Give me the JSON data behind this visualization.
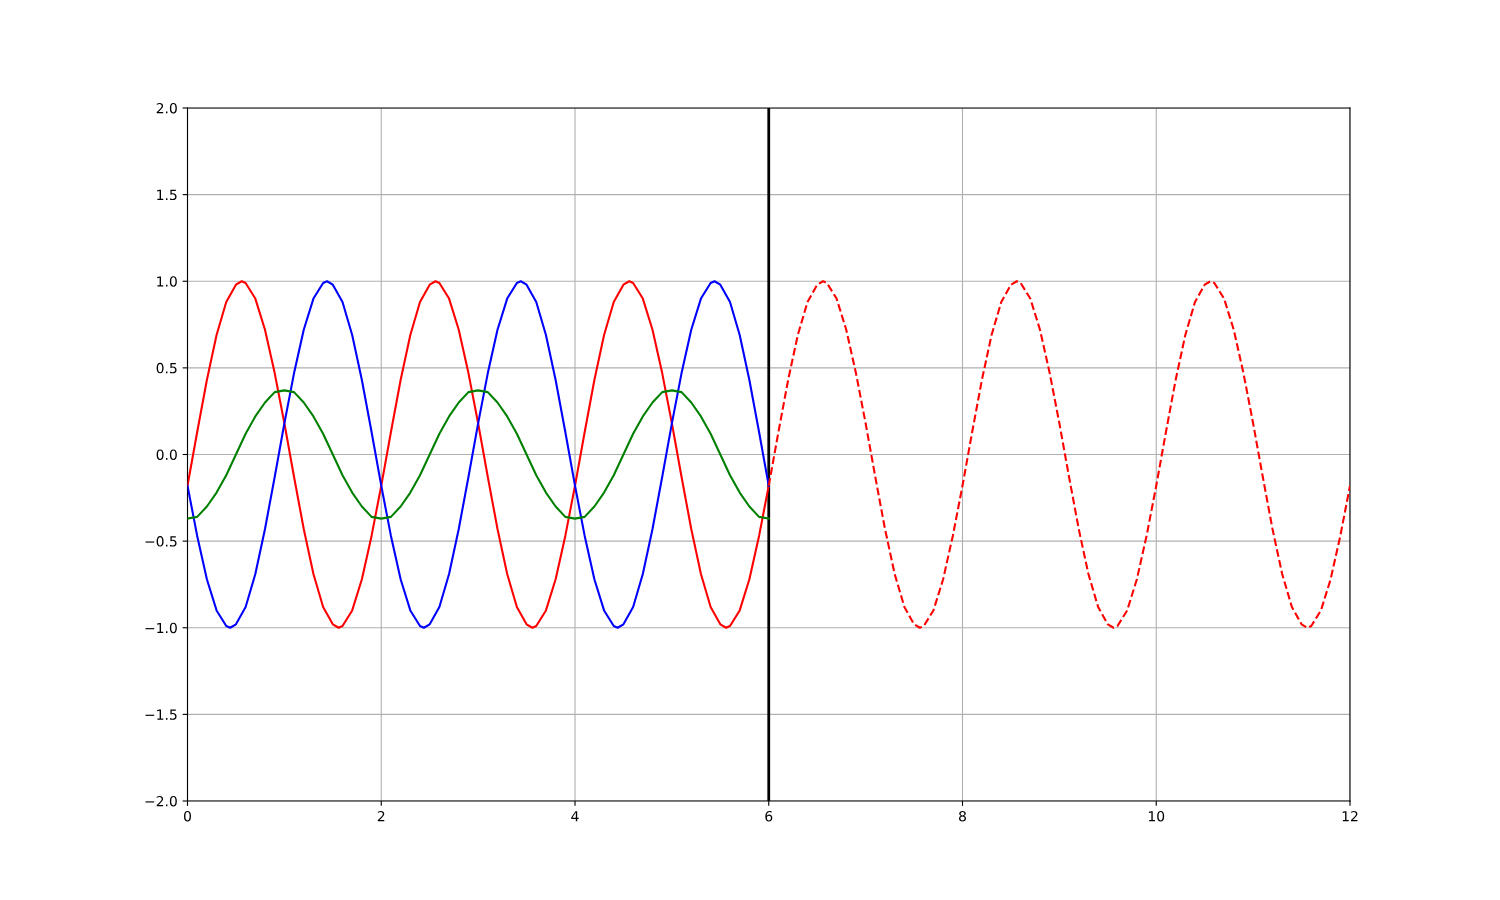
{
  "chart_data": {
    "type": "line",
    "series": [
      {
        "color": "#ff0000",
        "line_style": "solid",
        "x": [
          0,
          0.1,
          0.2,
          0.3,
          0.4,
          0.5,
          0.56,
          0.6,
          0.7,
          0.8,
          0.9,
          1.0,
          1.1,
          1.2,
          1.3,
          1.4,
          1.5,
          1.56,
          1.6,
          1.7,
          1.8,
          1.9,
          2.0,
          2.1,
          2.2,
          2.3,
          2.4,
          2.5,
          2.56,
          2.6,
          2.7,
          2.8,
          2.9,
          3.0,
          3.1,
          3.2,
          3.3,
          3.4,
          3.5,
          3.56,
          3.6,
          3.7,
          3.8,
          3.9,
          4.0,
          4.1,
          4.2,
          4.3,
          4.4,
          4.5,
          4.56,
          4.6,
          4.7,
          4.8,
          4.9,
          5.0,
          5.1,
          5.2,
          5.3,
          5.4,
          5.5,
          5.56,
          5.6,
          5.7,
          5.8,
          5.9,
          6.0
        ],
        "values": [
          -0.18,
          0.13,
          0.43,
          0.69,
          0.88,
          0.98,
          1.0,
          0.99,
          0.9,
          0.72,
          0.47,
          0.18,
          -0.13,
          -0.43,
          -0.69,
          -0.88,
          -0.98,
          -1.0,
          -0.99,
          -0.9,
          -0.72,
          -0.47,
          -0.18,
          0.13,
          0.43,
          0.69,
          0.88,
          0.98,
          1.0,
          0.99,
          0.9,
          0.72,
          0.47,
          0.18,
          -0.13,
          -0.43,
          -0.69,
          -0.88,
          -0.98,
          -1.0,
          -0.99,
          -0.9,
          -0.72,
          -0.47,
          -0.18,
          0.13,
          0.43,
          0.69,
          0.88,
          0.98,
          1.0,
          0.99,
          0.9,
          0.72,
          0.47,
          0.18,
          -0.13,
          -0.43,
          -0.69,
          -0.88,
          -0.98,
          -1.0,
          -0.99,
          -0.9,
          -0.72,
          -0.47,
          -0.18
        ]
      },
      {
        "color": "#0000ff",
        "line_style": "solid",
        "x": [
          0,
          0.1,
          0.2,
          0.3,
          0.4,
          0.44,
          0.5,
          0.6,
          0.7,
          0.8,
          0.9,
          1.0,
          1.1,
          1.2,
          1.3,
          1.4,
          1.44,
          1.5,
          1.6,
          1.7,
          1.8,
          1.9,
          2.0,
          2.1,
          2.2,
          2.3,
          2.4,
          2.44,
          2.5,
          2.6,
          2.7,
          2.8,
          2.9,
          3.0,
          3.1,
          3.2,
          3.3,
          3.4,
          3.44,
          3.5,
          3.6,
          3.7,
          3.8,
          3.9,
          4.0,
          4.1,
          4.2,
          4.3,
          4.4,
          4.44,
          4.5,
          4.6,
          4.7,
          4.8,
          4.9,
          5.0,
          5.1,
          5.2,
          5.3,
          5.4,
          5.44,
          5.5,
          5.6,
          5.7,
          5.8,
          5.9,
          6.0
        ],
        "values": [
          -0.18,
          -0.47,
          -0.72,
          -0.9,
          -0.99,
          -1.0,
          -0.98,
          -0.88,
          -0.69,
          -0.43,
          -0.13,
          0.18,
          0.47,
          0.72,
          0.9,
          0.99,
          1.0,
          0.98,
          0.88,
          0.69,
          0.43,
          0.13,
          -0.18,
          -0.47,
          -0.72,
          -0.9,
          -0.99,
          -1.0,
          -0.98,
          -0.88,
          -0.69,
          -0.43,
          -0.13,
          0.18,
          0.47,
          0.72,
          0.9,
          0.99,
          1.0,
          0.98,
          0.88,
          0.69,
          0.43,
          0.13,
          -0.18,
          -0.47,
          -0.72,
          -0.9,
          -0.99,
          -1.0,
          -0.98,
          -0.88,
          -0.69,
          -0.43,
          -0.13,
          0.18,
          0.47,
          0.72,
          0.9,
          0.99,
          1.0,
          0.98,
          0.88,
          0.69,
          0.43,
          0.13,
          -0.18
        ]
      },
      {
        "color": "#008000",
        "line_style": "solid",
        "x": [
          0,
          0.1,
          0.2,
          0.3,
          0.4,
          0.5,
          0.6,
          0.7,
          0.8,
          0.9,
          1.0,
          1.1,
          1.2,
          1.3,
          1.4,
          1.5,
          1.6,
          1.7,
          1.8,
          1.9,
          2.0,
          2.1,
          2.2,
          2.3,
          2.4,
          2.5,
          2.6,
          2.7,
          2.8,
          2.9,
          3.0,
          3.1,
          3.2,
          3.3,
          3.4,
          3.5,
          3.6,
          3.7,
          3.8,
          3.9,
          4.0,
          4.1,
          4.2,
          4.3,
          4.4,
          4.5,
          4.6,
          4.7,
          4.8,
          4.9,
          5.0,
          5.1,
          5.2,
          5.3,
          5.4,
          5.5,
          5.6,
          5.7,
          5.8,
          5.9,
          6.0
        ],
        "values": [
          -0.37,
          -0.36,
          -0.3,
          -0.22,
          -0.12,
          0.0,
          0.12,
          0.22,
          0.3,
          0.36,
          0.37,
          0.36,
          0.3,
          0.22,
          0.12,
          0.0,
          -0.12,
          -0.22,
          -0.3,
          -0.36,
          -0.37,
          -0.36,
          -0.3,
          -0.22,
          -0.12,
          0.0,
          0.12,
          0.22,
          0.3,
          0.36,
          0.37,
          0.36,
          0.3,
          0.22,
          0.12,
          0.0,
          -0.12,
          -0.22,
          -0.3,
          -0.36,
          -0.37,
          -0.36,
          -0.3,
          -0.22,
          -0.12,
          0.0,
          0.12,
          0.22,
          0.3,
          0.36,
          0.37,
          0.36,
          0.3,
          0.22,
          0.12,
          0.0,
          -0.12,
          -0.22,
          -0.3,
          -0.36,
          -0.37
        ]
      },
      {
        "color": "#ff0000",
        "line_style": "dashed",
        "x": [
          6.0,
          6.1,
          6.2,
          6.3,
          6.4,
          6.5,
          6.56,
          6.6,
          6.7,
          6.8,
          6.9,
          7.0,
          7.1,
          7.2,
          7.3,
          7.4,
          7.5,
          7.56,
          7.6,
          7.7,
          7.8,
          7.9,
          8.0,
          8.1,
          8.2,
          8.3,
          8.4,
          8.5,
          8.56,
          8.6,
          8.7,
          8.8,
          8.9,
          9.0,
          9.1,
          9.2,
          9.3,
          9.4,
          9.5,
          9.56,
          9.6,
          9.7,
          9.8,
          9.9,
          10.0,
          10.1,
          10.2,
          10.3,
          10.4,
          10.5,
          10.56,
          10.6,
          10.7,
          10.8,
          10.9,
          11.0,
          11.1,
          11.2,
          11.3,
          11.4,
          11.5,
          11.56,
          11.6,
          11.7,
          11.8,
          11.9,
          12.0
        ],
        "values": [
          -0.18,
          0.13,
          0.43,
          0.69,
          0.88,
          0.98,
          1.0,
          0.99,
          0.9,
          0.72,
          0.47,
          0.18,
          -0.13,
          -0.43,
          -0.69,
          -0.88,
          -0.98,
          -1.0,
          -0.99,
          -0.9,
          -0.72,
          -0.47,
          -0.18,
          0.13,
          0.43,
          0.69,
          0.88,
          0.98,
          1.0,
          0.99,
          0.9,
          0.72,
          0.47,
          0.18,
          -0.13,
          -0.43,
          -0.69,
          -0.88,
          -0.98,
          -1.0,
          -0.99,
          -0.9,
          -0.72,
          -0.47,
          -0.18,
          0.13,
          0.43,
          0.69,
          0.88,
          0.98,
          1.0,
          0.99,
          0.9,
          0.72,
          0.47,
          0.18,
          -0.13,
          -0.43,
          -0.69,
          -0.88,
          -0.98,
          -1.0,
          -0.99,
          -0.9,
          -0.72,
          -0.47,
          -0.18
        ]
      }
    ],
    "ref_lines": [
      {
        "axis": "x",
        "value": 6,
        "color": "#000000"
      }
    ],
    "xlim": [
      0,
      12
    ],
    "xticks": [
      0,
      2,
      4,
      6,
      8,
      10,
      12
    ],
    "ylim": [
      -2.0,
      2.0
    ],
    "yticks": [
      {
        "value": -2.0,
        "label": "−2.0"
      },
      {
        "value": -1.5,
        "label": "−1.5"
      },
      {
        "value": -1.0,
        "label": "−1.0"
      },
      {
        "value": -0.5,
        "label": "−0.5"
      },
      {
        "value": 0,
        "label": "0.0"
      },
      0.5,
      {
        "value": 1,
        "label": "1.0"
      },
      1.5,
      {
        "value": 2,
        "label": "2.0"
      }
    ],
    "grid": true
  }
}
